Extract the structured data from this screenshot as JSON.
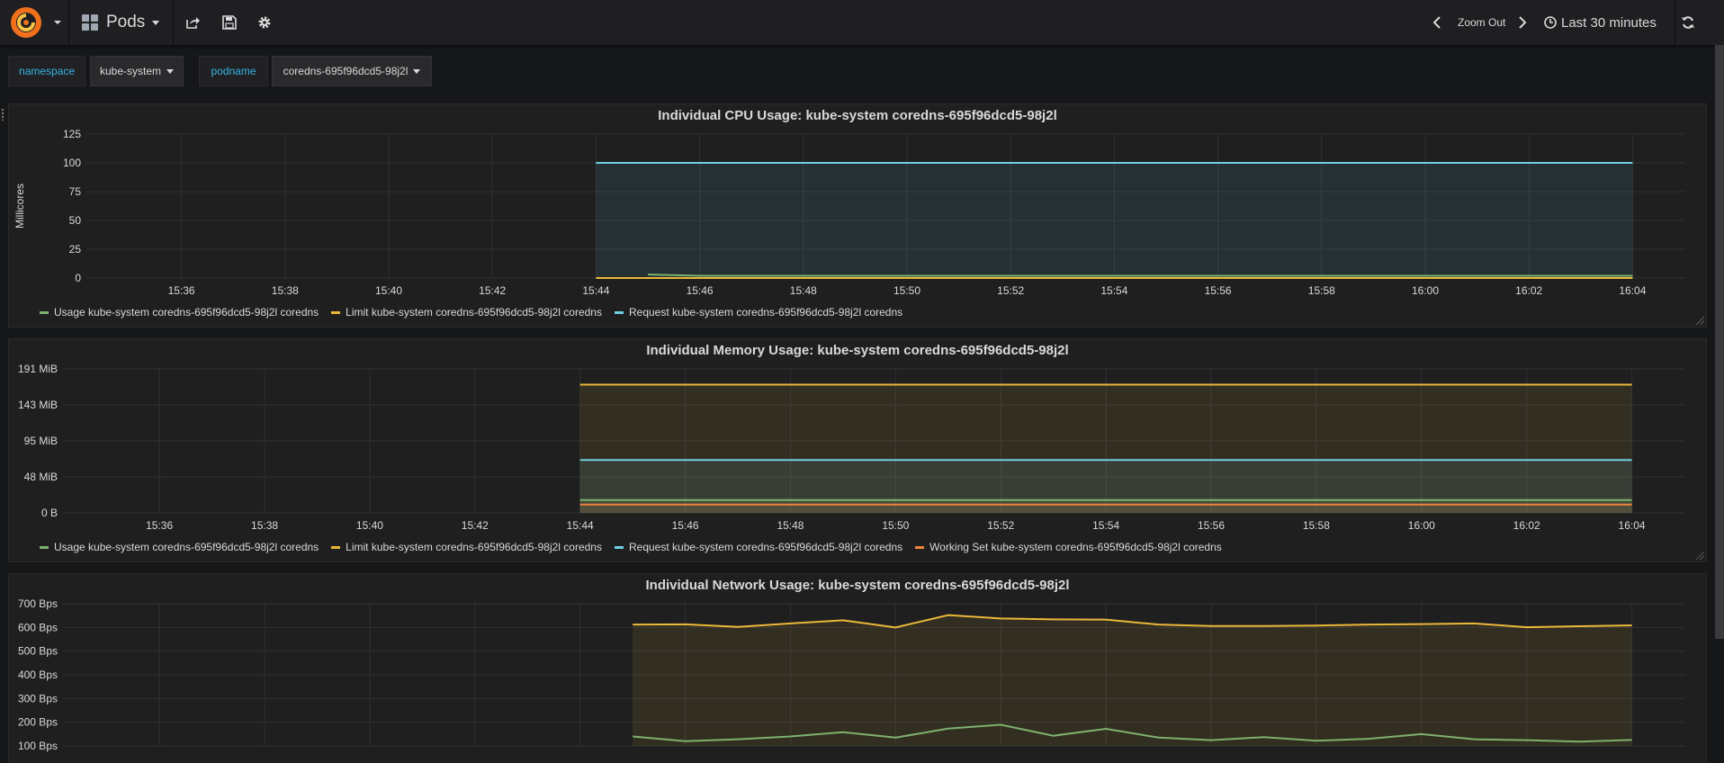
{
  "navbar": {
    "dashboard_title": "Pods",
    "zoom_out_label": "Zoom Out",
    "time_range_label": "Last 30 minutes",
    "icons": [
      "grafana-logo",
      "dashboard-grid-icon",
      "share-icon",
      "save-icon",
      "settings-gear-icon",
      "chevron-left-icon",
      "chevron-right-icon",
      "clock-icon",
      "refresh-icon"
    ]
  },
  "variables": [
    {
      "label": "namespace",
      "value": "kube-system"
    },
    {
      "label": "podname",
      "value": "coredns-695f96dcd5-98j2l"
    }
  ],
  "colors": {
    "usage": "#7eb26d",
    "limit": "#eab839",
    "request": "#6ed0e0",
    "working_set": "#ef843c",
    "accent": "#33b5e5"
  },
  "panels": [
    {
      "title": "Individual CPU Usage: kube-system coredns-695f96dcd5-98j2l",
      "legend": [
        {
          "label": "Usage kube-system coredns-695f96dcd5-98j2l coredns",
          "color": "#7eb26d"
        },
        {
          "label": "Limit kube-system coredns-695f96dcd5-98j2l coredns",
          "color": "#eab839"
        },
        {
          "label": "Request kube-system coredns-695f96dcd5-98j2l coredns",
          "color": "#6ed0e0"
        }
      ]
    },
    {
      "title": "Individual Memory Usage: kube-system coredns-695f96dcd5-98j2l",
      "legend": [
        {
          "label": "Usage kube-system coredns-695f96dcd5-98j2l coredns",
          "color": "#7eb26d"
        },
        {
          "label": "Limit kube-system coredns-695f96dcd5-98j2l coredns",
          "color": "#eab839"
        },
        {
          "label": "Request kube-system coredns-695f96dcd5-98j2l coredns",
          "color": "#6ed0e0"
        },
        {
          "label": "Working Set kube-system coredns-695f96dcd5-98j2l coredns",
          "color": "#ef843c"
        }
      ]
    },
    {
      "title": "Individual Network Usage: kube-system coredns-695f96dcd5-98j2l",
      "legend": []
    }
  ],
  "chart_data": [
    {
      "type": "line",
      "title": "Individual CPU Usage: kube-system coredns-695f96dcd5-98j2l",
      "xlabel": "",
      "ylabel": "Millicores",
      "x_ticks": [
        "15:36",
        "15:38",
        "15:40",
        "15:42",
        "15:44",
        "15:46",
        "15:48",
        "15:50",
        "15:52",
        "15:54",
        "15:56",
        "15:58",
        "16:00",
        "16:02",
        "16:04"
      ],
      "y_ticks": [
        "0",
        "25",
        "50",
        "75",
        "100",
        "125"
      ],
      "y_tick_values": [
        0,
        25,
        50,
        75,
        100,
        125
      ],
      "xlim": [
        "15:34:10",
        "16:05:00"
      ],
      "ylim": [
        0,
        125
      ],
      "grid": true,
      "legend_position": "bottom-left",
      "series": [
        {
          "name": "Usage kube-system coredns-695f96dcd5-98j2l coredns",
          "color": "#7eb26d",
          "fill": false,
          "x": [
            "15:45",
            "15:46",
            "15:48",
            "15:50",
            "15:52",
            "15:54",
            "15:56",
            "15:58",
            "16:00",
            "16:02",
            "16:04"
          ],
          "values": [
            3,
            2,
            2,
            2,
            2,
            2,
            2,
            2,
            2,
            2,
            2
          ]
        },
        {
          "name": "Limit kube-system coredns-695f96dcd5-98j2l coredns",
          "color": "#eab839",
          "fill": false,
          "x": [
            "15:44",
            "16:04"
          ],
          "values": [
            0,
            0
          ]
        },
        {
          "name": "Request kube-system coredns-695f96dcd5-98j2l coredns",
          "color": "#6ed0e0",
          "fill": true,
          "x": [
            "15:44",
            "16:04"
          ],
          "values": [
            100,
            100
          ]
        }
      ]
    },
    {
      "type": "line",
      "title": "Individual Memory Usage: kube-system coredns-695f96dcd5-98j2l",
      "xlabel": "",
      "ylabel": "",
      "x_ticks": [
        "15:36",
        "15:38",
        "15:40",
        "15:42",
        "15:44",
        "15:46",
        "15:48",
        "15:50",
        "15:52",
        "15:54",
        "15:56",
        "15:58",
        "16:00",
        "16:02",
        "16:04"
      ],
      "y_ticks": [
        "0 B",
        "48 MiB",
        "95 MiB",
        "143 MiB",
        "191 MiB"
      ],
      "y_tick_values": [
        0,
        47.7,
        95.4,
        143.1,
        190.8
      ],
      "xlim": [
        "15:34:10",
        "16:05:00"
      ],
      "ylim": [
        0,
        190.8
      ],
      "grid": true,
      "legend_position": "bottom-left",
      "series": [
        {
          "name": "Usage kube-system coredns-695f96dcd5-98j2l coredns",
          "color": "#7eb26d",
          "fill": true,
          "x": [
            "15:44",
            "16:04"
          ],
          "values": [
            17,
            17
          ]
        },
        {
          "name": "Limit kube-system coredns-695f96dcd5-98j2l coredns",
          "color": "#eab839",
          "fill": true,
          "x": [
            "15:44",
            "16:04"
          ],
          "values": [
            170,
            170
          ]
        },
        {
          "name": "Request kube-system coredns-695f96dcd5-98j2l coredns",
          "color": "#6ed0e0",
          "fill": true,
          "x": [
            "15:44",
            "16:04"
          ],
          "values": [
            70,
            70
          ]
        },
        {
          "name": "Working Set kube-system coredns-695f96dcd5-98j2l coredns",
          "color": "#ef843c",
          "fill": true,
          "x": [
            "15:44",
            "16:04"
          ],
          "values": [
            11,
            11
          ]
        }
      ]
    },
    {
      "type": "line",
      "title": "Individual Network Usage: kube-system coredns-695f96dcd5-98j2l",
      "xlabel": "",
      "ylabel": "",
      "x_ticks": [],
      "y_ticks": [
        "100 Bps",
        "200 Bps",
        "300 Bps",
        "400 Bps",
        "500 Bps",
        "600 Bps",
        "700 Bps"
      ],
      "y_tick_values": [
        100,
        200,
        300,
        400,
        500,
        600,
        700
      ],
      "xlim": [
        "15:34:10",
        "16:05:00"
      ],
      "ylim": [
        100,
        700
      ],
      "grid": true,
      "series": [
        {
          "name": "",
          "color": "#eab839",
          "fill": true,
          "x": [
            "15:45",
            "15:46",
            "15:47",
            "15:48",
            "15:49",
            "15:50",
            "15:51",
            "15:52",
            "15:53",
            "15:54",
            "15:55",
            "15:56",
            "15:57",
            "15:58",
            "15:59",
            "16:00",
            "16:01",
            "16:02",
            "16:03",
            "16:04"
          ],
          "values": [
            612,
            613,
            602,
            617,
            630,
            600,
            652,
            638,
            634,
            633,
            612,
            606,
            606,
            608,
            612,
            614,
            617,
            601,
            605,
            609
          ]
        },
        {
          "name": "",
          "color": "#7eb26d",
          "fill": false,
          "x": [
            "15:45",
            "15:46",
            "15:47",
            "15:48",
            "15:49",
            "15:50",
            "15:51",
            "15:52",
            "15:53",
            "15:54",
            "15:55",
            "15:56",
            "15:57",
            "15:58",
            "15:59",
            "16:00",
            "16:01",
            "16:02",
            "16:03",
            "16:04"
          ],
          "values": [
            140,
            120,
            128,
            140,
            158,
            135,
            173,
            189,
            143,
            172,
            135,
            124,
            137,
            122,
            130,
            150,
            128,
            124,
            118,
            125
          ]
        }
      ]
    }
  ]
}
